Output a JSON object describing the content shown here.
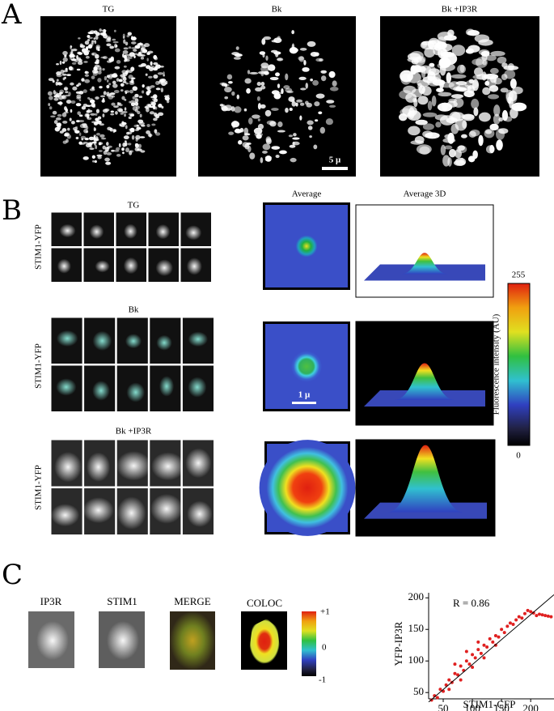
{
  "figure": {
    "panel_a": {
      "label": "A",
      "titles": [
        "TG",
        "Bk",
        "Bk +IP3R"
      ],
      "scale_bar": "5 μ"
    },
    "panel_b": {
      "label": "B",
      "rows": [
        "TG",
        "Bk",
        "Bk +IP3R"
      ],
      "row_axis_label": "STIM1-YFP",
      "columns": [
        "Average",
        "Average 3D"
      ],
      "scale_bar": "1 μ",
      "colorbar": {
        "max": "255",
        "min": "0",
        "label": "Fluorescence intensity (AU)"
      }
    },
    "panel_c": {
      "label": "C",
      "titles": [
        "IP3R",
        "STIM1",
        "MERGE",
        "COLOC"
      ],
      "colorbar": {
        "max": "+1",
        "mid": "0",
        "min": "-1"
      }
    }
  },
  "chart_data": {
    "type": "scatter",
    "annotation": "R = 0.86",
    "x_label": "STIM1-CFP",
    "y_label": "YFP-IP3R",
    "color": "#e02020",
    "x": [
      30,
      35,
      40,
      45,
      50,
      55,
      60,
      65,
      70,
      75,
      80,
      85,
      90,
      95,
      100,
      105,
      110,
      115,
      120,
      125,
      130,
      135,
      140,
      145,
      150,
      155,
      160,
      165,
      170,
      175,
      180,
      185,
      190,
      195,
      200,
      205,
      210,
      215,
      220,
      225,
      230,
      235,
      60,
      80,
      100,
      120,
      140,
      70,
      90,
      110
    ],
    "y": [
      38,
      45,
      42,
      55,
      52,
      62,
      70,
      66,
      80,
      78,
      92,
      85,
      100,
      95,
      110,
      105,
      118,
      112,
      125,
      122,
      135,
      130,
      140,
      138,
      150,
      145,
      155,
      160,
      158,
      165,
      170,
      168,
      175,
      180,
      178,
      176,
      172,
      174,
      173,
      172,
      171,
      170,
      55,
      70,
      90,
      105,
      125,
      95,
      115,
      130
    ],
    "fit": {
      "x": [
        25,
        240
      ],
      "y": [
        35,
        205
      ]
    },
    "xlim": [
      25,
      240
    ],
    "ylim": [
      40,
      208
    ],
    "xticks": [
      50,
      100,
      150,
      200
    ],
    "yticks": [
      50,
      100,
      150,
      200
    ]
  }
}
